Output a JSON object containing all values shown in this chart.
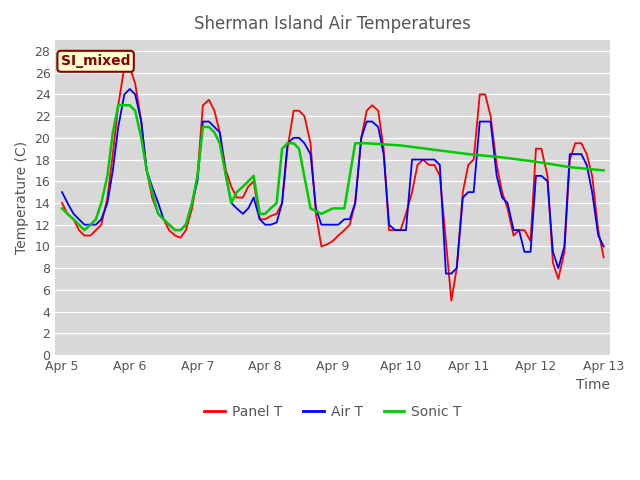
{
  "title": "Sherman Island Air Temperatures",
  "xlabel": "Time",
  "ylabel": "Temperature (C)",
  "ylim": [
    0,
    29
  ],
  "xlim": [
    -0.1,
    8.1
  ],
  "background_color": "#d8d8d8",
  "fig_color": "#ffffff",
  "panel_T_color": "#ff0000",
  "air_T_color": "#0000ff",
  "sonic_T_color": "#00cc00",
  "label_box_text": "SI_mixed",
  "label_box_facecolor": "#ffffcc",
  "label_box_edgecolor": "#8B0000",
  "label_box_textcolor": "#8B0000",
  "xtick_labels": [
    "Apr 5",
    "Apr 6",
    "Apr 7",
    "Apr 8",
    "Apr 9",
    "Apr 10",
    "Apr 11",
    "Apr 12",
    "Apr 13"
  ],
  "xtick_positions": [
    0,
    1,
    2,
    3,
    4,
    5,
    6,
    7,
    8
  ],
  "ytick_labels": [
    "0",
    "2",
    "4",
    "6",
    "8",
    "10",
    "12",
    "14",
    "16",
    "18",
    "20",
    "22",
    "24",
    "26",
    "28"
  ],
  "ytick_positions": [
    0,
    2,
    4,
    6,
    8,
    10,
    12,
    14,
    16,
    18,
    20,
    22,
    24,
    26,
    28
  ],
  "panel_T_x": [
    0.0,
    0.08,
    0.17,
    0.25,
    0.33,
    0.42,
    0.5,
    0.58,
    0.67,
    0.75,
    0.83,
    0.92,
    1.0,
    1.08,
    1.17,
    1.25,
    1.33,
    1.42,
    1.5,
    1.58,
    1.67,
    1.75,
    1.83,
    1.92,
    2.0,
    2.08,
    2.17,
    2.25,
    2.33,
    2.42,
    2.5,
    2.58,
    2.67,
    2.75,
    2.83,
    2.92,
    3.0,
    3.08,
    3.17,
    3.25,
    3.33,
    3.42,
    3.5,
    3.58,
    3.67,
    3.75,
    3.83,
    3.92,
    4.0,
    4.08,
    4.17,
    4.25,
    4.33,
    4.42,
    4.5,
    4.58,
    4.67,
    4.75,
    4.83,
    4.92,
    5.0,
    5.08,
    5.17,
    5.25,
    5.33,
    5.42,
    5.5,
    5.58,
    5.67,
    5.75,
    5.83,
    5.92,
    6.0,
    6.08,
    6.17,
    6.25,
    6.33,
    6.42,
    6.5,
    6.58,
    6.67,
    6.75,
    6.83,
    6.92,
    7.0,
    7.08,
    7.17,
    7.25,
    7.33,
    7.42,
    7.5,
    7.58,
    7.67,
    7.75,
    7.83,
    7.92,
    8.0
  ],
  "panel_T_y": [
    14.0,
    13.0,
    12.5,
    11.5,
    11.0,
    11.0,
    11.5,
    12.0,
    14.5,
    18.5,
    23.0,
    26.5,
    26.5,
    25.0,
    21.5,
    17.0,
    14.5,
    13.0,
    12.5,
    11.5,
    11.0,
    10.8,
    11.5,
    13.5,
    16.5,
    23.0,
    23.5,
    22.5,
    20.5,
    17.0,
    15.5,
    14.5,
    14.5,
    15.5,
    16.0,
    12.5,
    12.5,
    12.8,
    13.0,
    14.0,
    19.0,
    22.5,
    22.5,
    22.0,
    19.5,
    13.0,
    10.0,
    10.2,
    10.5,
    11.0,
    11.5,
    12.0,
    14.0,
    20.0,
    22.5,
    23.0,
    22.5,
    19.0,
    11.5,
    11.5,
    11.5,
    13.0,
    15.0,
    17.5,
    18.0,
    17.5,
    17.5,
    16.5,
    10.5,
    5.0,
    8.0,
    15.0,
    17.5,
    18.0,
    24.0,
    24.0,
    22.0,
    17.5,
    15.0,
    13.5,
    11.0,
    11.5,
    11.5,
    10.5,
    19.0,
    19.0,
    16.5,
    8.5,
    7.0,
    9.5,
    18.0,
    19.5,
    19.5,
    18.5,
    16.5,
    11.5,
    9.0
  ],
  "air_T_x": [
    0.0,
    0.08,
    0.17,
    0.25,
    0.33,
    0.42,
    0.5,
    0.58,
    0.67,
    0.75,
    0.83,
    0.92,
    1.0,
    1.08,
    1.17,
    1.25,
    1.33,
    1.42,
    1.5,
    1.58,
    1.67,
    1.75,
    1.83,
    1.92,
    2.0,
    2.08,
    2.17,
    2.25,
    2.33,
    2.42,
    2.5,
    2.58,
    2.67,
    2.75,
    2.83,
    2.92,
    3.0,
    3.08,
    3.17,
    3.25,
    3.33,
    3.42,
    3.5,
    3.58,
    3.67,
    3.75,
    3.83,
    3.92,
    4.0,
    4.08,
    4.17,
    4.25,
    4.33,
    4.42,
    4.5,
    4.58,
    4.67,
    4.75,
    4.83,
    4.92,
    5.0,
    5.08,
    5.17,
    5.25,
    5.33,
    5.42,
    5.5,
    5.58,
    5.67,
    5.75,
    5.83,
    5.92,
    6.0,
    6.08,
    6.17,
    6.25,
    6.33,
    6.42,
    6.5,
    6.58,
    6.67,
    6.75,
    6.83,
    6.92,
    7.0,
    7.08,
    7.17,
    7.25,
    7.33,
    7.42,
    7.5,
    7.58,
    7.67,
    7.75,
    7.83,
    7.92,
    8.0
  ],
  "air_T_y": [
    15.0,
    14.0,
    13.0,
    12.5,
    12.0,
    12.0,
    12.0,
    12.5,
    14.0,
    17.0,
    21.0,
    24.0,
    24.5,
    24.0,
    21.5,
    17.0,
    15.5,
    14.0,
    12.5,
    12.0,
    11.5,
    11.5,
    12.0,
    14.0,
    16.0,
    21.5,
    21.5,
    21.0,
    20.5,
    16.5,
    14.0,
    13.5,
    13.0,
    13.5,
    14.5,
    12.5,
    12.0,
    12.0,
    12.2,
    14.0,
    19.5,
    20.0,
    20.0,
    19.5,
    18.5,
    13.5,
    12.0,
    12.0,
    12.0,
    12.0,
    12.5,
    12.5,
    14.0,
    20.0,
    21.5,
    21.5,
    21.0,
    18.5,
    12.0,
    11.5,
    11.5,
    11.5,
    18.0,
    18.0,
    18.0,
    18.0,
    18.0,
    17.5,
    7.5,
    7.5,
    8.0,
    14.5,
    15.0,
    15.0,
    21.5,
    21.5,
    21.5,
    16.5,
    14.5,
    14.0,
    11.5,
    11.5,
    9.5,
    9.5,
    16.5,
    16.5,
    16.0,
    9.5,
    8.0,
    10.0,
    18.5,
    18.5,
    18.5,
    17.5,
    15.0,
    11.0,
    10.0
  ],
  "sonic_T_x": [
    0.0,
    0.08,
    0.17,
    0.25,
    0.33,
    0.42,
    0.5,
    0.58,
    0.67,
    0.75,
    0.83,
    0.92,
    1.0,
    1.08,
    1.17,
    1.25,
    1.33,
    1.42,
    1.5,
    1.58,
    1.67,
    1.75,
    1.83,
    1.92,
    2.0,
    2.08,
    2.17,
    2.25,
    2.33,
    2.42,
    2.5,
    2.58,
    2.67,
    2.75,
    2.83,
    2.92,
    3.0,
    3.08,
    3.17,
    3.25,
    3.33,
    3.42,
    3.5,
    3.67,
    3.83,
    4.0,
    4.17,
    4.33,
    4.5,
    5.0,
    6.0,
    6.5,
    7.0,
    7.5,
    8.0
  ],
  "sonic_T_y": [
    13.5,
    13.0,
    12.5,
    12.0,
    11.5,
    12.0,
    12.5,
    14.0,
    16.5,
    20.5,
    23.0,
    23.0,
    23.0,
    22.5,
    20.0,
    17.0,
    15.0,
    13.0,
    12.5,
    12.0,
    11.5,
    11.5,
    12.0,
    14.0,
    16.5,
    21.0,
    21.0,
    20.5,
    19.5,
    16.5,
    14.0,
    15.0,
    15.5,
    16.0,
    16.5,
    13.0,
    13.0,
    13.5,
    14.0,
    19.0,
    19.5,
    19.5,
    19.0,
    13.5,
    13.0,
    13.5,
    13.5,
    19.5,
    19.5,
    19.3,
    18.5,
    18.2,
    17.8,
    17.3,
    17.0
  ]
}
